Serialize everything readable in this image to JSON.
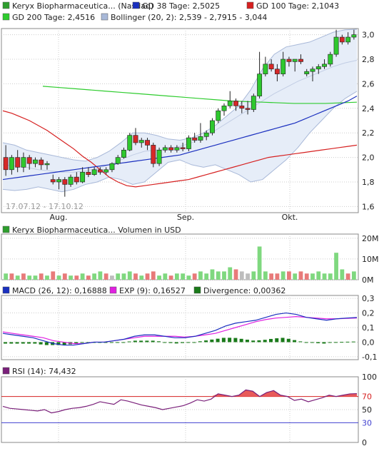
{
  "price_panel": {
    "legend": [
      {
        "label": "Keryx Biopharmaceutica... (Nasdaq)",
        "color": "#2e9e2e"
      },
      {
        "label": "GD 38 Tage: 2,5025",
        "color": "#1a2fbf"
      },
      {
        "label": "GD 100 Tage: 2,1043",
        "color": "#d62020"
      },
      {
        "label": "GD 200 Tage: 2,4516",
        "color": "#2ecc2e"
      },
      {
        "label": "Bollinger (20, 2): 2,539 - 2,7915 - 3,044",
        "color": "#a8b8d8"
      }
    ],
    "date_range": "17.07.12 - 17.10.12",
    "x_ticks": [
      "Aug.",
      "Sep.",
      "Okt."
    ],
    "y_ticks": [
      "3,0",
      "2,8",
      "2,6",
      "2,4",
      "2,2",
      "2,0",
      "1,8",
      "1,6"
    ]
  },
  "volume_panel": {
    "legend": [
      {
        "label": "Keryx Biopharmaceutica... Volumen in USD",
        "color": "#2e9e2e"
      }
    ],
    "y_ticks": [
      "20M",
      "10M",
      "0M"
    ]
  },
  "macd_panel": {
    "legend": [
      {
        "label": "MACD (26, 12): 0,16888",
        "color": "#1a2fbf"
      },
      {
        "label": "EXP (9): 0,16527",
        "color": "#e020e0"
      },
      {
        "label": "Divergence: 0,00362",
        "color": "#1a7a1a"
      }
    ],
    "y_ticks": [
      "0,3",
      "0,2",
      "0,1",
      "0,0",
      "-0,1"
    ]
  },
  "rsi_panel": {
    "legend": [
      {
        "label": "RSI (14): 74,432",
        "color": "#7a207a"
      }
    ],
    "y_ticks": [
      "100",
      "70",
      "50",
      "30",
      "0"
    ]
  },
  "chart_data": [
    {
      "type": "candlestick",
      "title": "Keryx Biopharmaceutica... (Nasdaq)",
      "x_range": [
        "17.07.12",
        "17.10.12"
      ],
      "ylim": [
        1.55,
        3.05
      ],
      "candles": [
        [
          2.0,
          2.1,
          1.85,
          1.9
        ],
        [
          1.9,
          2.02,
          1.86,
          2.0
        ],
        [
          2.0,
          2.06,
          1.88,
          1.92
        ],
        [
          1.92,
          2.04,
          1.88,
          2.0
        ],
        [
          2.0,
          2.02,
          1.9,
          1.95
        ],
        [
          1.95,
          2.0,
          1.92,
          1.98
        ],
        [
          1.98,
          2.0,
          1.9,
          1.94
        ],
        [
          1.94,
          1.97,
          1.9,
          1.95
        ],
        [
          1.82,
          1.86,
          1.78,
          1.8
        ],
        [
          1.8,
          1.84,
          1.74,
          1.82
        ],
        [
          1.82,
          1.84,
          1.68,
          1.78
        ],
        [
          1.78,
          1.86,
          1.76,
          1.84
        ],
        [
          1.84,
          1.88,
          1.78,
          1.8
        ],
        [
          1.8,
          1.92,
          1.79,
          1.88
        ],
        [
          1.88,
          1.92,
          1.84,
          1.86
        ],
        [
          1.86,
          1.92,
          1.85,
          1.9
        ],
        [
          1.9,
          1.92,
          1.86,
          1.88
        ],
        [
          1.88,
          1.92,
          1.86,
          1.9
        ],
        [
          1.9,
          1.96,
          1.88,
          1.95
        ],
        [
          1.95,
          2.02,
          1.94,
          2.0
        ],
        [
          2.0,
          2.08,
          1.99,
          2.06
        ],
        [
          2.06,
          2.2,
          2.05,
          2.18
        ],
        [
          2.18,
          2.24,
          2.1,
          2.12
        ],
        [
          2.12,
          2.16,
          2.08,
          2.14
        ],
        [
          2.14,
          2.16,
          2.06,
          2.1
        ],
        [
          2.1,
          2.12,
          1.92,
          1.95
        ],
        [
          1.95,
          2.08,
          1.93,
          2.06
        ],
        [
          2.06,
          2.1,
          2.04,
          2.08
        ],
        [
          2.08,
          2.1,
          2.04,
          2.06
        ],
        [
          2.06,
          2.1,
          2.04,
          2.08
        ],
        [
          2.08,
          2.12,
          2.05,
          2.07
        ],
        [
          2.07,
          2.18,
          2.05,
          2.16
        ],
        [
          2.16,
          2.2,
          2.12,
          2.14
        ],
        [
          2.14,
          2.28,
          2.12,
          2.17
        ],
        [
          2.17,
          2.22,
          2.14,
          2.2
        ],
        [
          2.2,
          2.32,
          2.18,
          2.3
        ],
        [
          2.3,
          2.4,
          2.28,
          2.38
        ],
        [
          2.38,
          2.44,
          2.34,
          2.42
        ],
        [
          2.42,
          2.54,
          2.4,
          2.46
        ],
        [
          2.46,
          2.48,
          2.38,
          2.42
        ],
        [
          2.42,
          2.46,
          2.36,
          2.4
        ],
        [
          2.4,
          2.46,
          2.35,
          2.39
        ],
        [
          2.39,
          2.52,
          2.37,
          2.5
        ],
        [
          2.5,
          2.86,
          2.48,
          2.68
        ],
        [
          2.68,
          2.82,
          2.66,
          2.76
        ],
        [
          2.76,
          2.8,
          2.7,
          2.72
        ],
        [
          2.72,
          2.76,
          2.62,
          2.68
        ],
        [
          2.68,
          2.86,
          2.66,
          2.8
        ],
        [
          2.8,
          2.82,
          2.74,
          2.78
        ],
        [
          2.78,
          2.8,
          2.7,
          2.8
        ],
        [
          2.8,
          2.84,
          2.76,
          2.78
        ],
        [
          2.68,
          2.72,
          2.66,
          2.7
        ],
        [
          2.7,
          2.74,
          2.62,
          2.72
        ],
        [
          2.72,
          2.76,
          2.68,
          2.74
        ],
        [
          2.74,
          2.8,
          2.72,
          2.76
        ],
        [
          2.76,
          2.86,
          2.74,
          2.84
        ],
        [
          2.84,
          3.04,
          2.82,
          2.98
        ],
        [
          2.98,
          3.0,
          2.92,
          2.94
        ],
        [
          2.94,
          3.02,
          2.92,
          2.98
        ],
        [
          2.98,
          3.04,
          2.96,
          3.0
        ]
      ],
      "overlays": {
        "gd38": [
          1.82,
          1.83,
          1.84,
          1.85,
          1.86,
          1.87,
          1.88,
          1.89,
          1.9,
          1.91,
          1.92,
          1.93,
          1.94,
          1.95,
          1.96,
          1.97,
          1.98,
          1.99,
          2.0,
          2.01,
          2.02,
          2.04,
          2.06,
          2.08,
          2.1,
          2.12,
          2.14,
          2.16,
          2.18,
          2.2,
          2.22,
          2.24,
          2.26,
          2.28,
          2.31,
          2.34,
          2.37,
          2.4,
          2.43,
          2.46,
          2.5
        ],
        "gd100": [
          2.38,
          2.36,
          2.33,
          2.3,
          2.26,
          2.22,
          2.17,
          2.12,
          2.07,
          2.01,
          1.96,
          1.9,
          1.84,
          1.8,
          1.77,
          1.76,
          1.77,
          1.78,
          1.79,
          1.8,
          1.81,
          1.82,
          1.84,
          1.86,
          1.88,
          1.9,
          1.92,
          1.94,
          1.96,
          1.98,
          2.0,
          2.01,
          2.02,
          2.03,
          2.04,
          2.05,
          2.06,
          2.07,
          2.08,
          2.09,
          2.1
        ],
        "gd200": [
          2.58,
          2.57,
          2.56,
          2.55,
          2.54,
          2.53,
          2.52,
          2.51,
          2.5,
          2.49,
          2.48,
          2.47,
          2.46,
          2.455,
          2.45,
          2.445,
          2.44,
          2.44,
          2.44,
          2.445,
          2.45
        ],
        "boll_upper": [
          2.12,
          2.1,
          2.06,
          2.04,
          2.02,
          2.0,
          1.98,
          1.97,
          2.0,
          2.05,
          2.12,
          2.2,
          2.2,
          2.18,
          2.15,
          2.14,
          2.16,
          2.2,
          2.26,
          2.34,
          2.42,
          2.55,
          2.72,
          2.84,
          2.9,
          2.92,
          2.94,
          2.98,
          3.02,
          3.04,
          3.044
        ],
        "boll_middle": [
          1.94,
          1.93,
          1.92,
          1.9,
          1.89,
          1.88,
          1.88,
          1.89,
          1.91,
          1.94,
          1.98,
          2.02,
          2.05,
          2.06,
          2.07,
          2.09,
          2.12,
          2.16,
          2.22,
          2.28,
          2.34,
          2.4,
          2.46,
          2.52,
          2.57,
          2.62,
          2.66,
          2.7,
          2.74,
          2.77,
          2.7915
        ],
        "boll_lower": [
          1.74,
          1.73,
          1.74,
          1.76,
          1.74,
          1.72,
          1.74,
          1.78,
          1.8,
          1.84,
          1.82,
          1.78,
          1.8,
          1.88,
          1.96,
          1.98,
          1.94,
          1.92,
          1.94,
          1.9,
          1.86,
          1.8,
          1.82,
          1.9,
          1.98,
          2.08,
          2.2,
          2.3,
          2.4,
          2.48,
          2.539
        ]
      }
    },
    {
      "type": "bar",
      "title": "Volumen in USD",
      "ylim": [
        0,
        22
      ],
      "values": [
        3,
        3,
        2,
        3,
        2,
        2,
        3,
        2,
        4,
        2,
        3,
        2,
        2,
        3,
        2,
        3,
        4,
        3,
        2,
        3,
        3,
        4,
        3,
        2,
        3,
        4,
        2,
        3,
        2,
        3,
        3,
        2,
        3,
        4,
        3,
        5,
        4,
        4,
        6,
        5,
        4,
        3,
        4,
        16,
        4,
        3,
        3,
        4,
        4,
        3,
        4,
        3,
        3,
        4,
        3,
        3,
        13,
        5,
        3,
        4
      ],
      "colors": [
        "g",
        "r",
        "g",
        "r",
        "g",
        "g",
        "r",
        "g",
        "r",
        "g",
        "r",
        "g",
        "r",
        "g",
        "r",
        "g",
        "g",
        "r",
        "gr",
        "g",
        "g",
        "g",
        "r",
        "g",
        "r",
        "r",
        "g",
        "g",
        "r",
        "g",
        "g",
        "g",
        "r",
        "g",
        "g",
        "g",
        "g",
        "g",
        "g",
        "r",
        "gr",
        "gr",
        "g",
        "g",
        "g",
        "r",
        "r",
        "g",
        "r",
        "g",
        "r",
        "r",
        "g",
        "g",
        "g",
        "g",
        "g",
        "g",
        "r",
        "g"
      ]
    },
    {
      "type": "line",
      "title": "MACD",
      "ylim": [
        -0.12,
        0.32
      ],
      "macd": [
        0.06,
        0.05,
        0.04,
        0.03,
        0.01,
        -0.01,
        -0.02,
        -0.02,
        -0.01,
        0.0,
        0.0,
        0.01,
        0.02,
        0.04,
        0.05,
        0.05,
        0.04,
        0.03,
        0.03,
        0.04,
        0.06,
        0.08,
        0.11,
        0.13,
        0.14,
        0.15,
        0.17,
        0.19,
        0.2,
        0.19,
        0.17,
        0.16,
        0.15,
        0.16,
        0.165,
        0.169
      ],
      "exp": [
        0.07,
        0.06,
        0.05,
        0.04,
        0.03,
        0.01,
        0.0,
        -0.01,
        -0.01,
        0.0,
        0.0,
        0.01,
        0.02,
        0.03,
        0.04,
        0.04,
        0.04,
        0.04,
        0.035,
        0.04,
        0.05,
        0.06,
        0.08,
        0.1,
        0.12,
        0.14,
        0.155,
        0.165,
        0.17,
        0.175,
        0.17,
        0.165,
        0.16,
        0.16,
        0.163,
        0.165
      ],
      "divergence": [
        -0.01,
        -0.01,
        -0.01,
        -0.01,
        -0.02,
        -0.02,
        -0.02,
        -0.01,
        0.0,
        0.0,
        0.0,
        0.0,
        0.0,
        0.01,
        0.01,
        0.01,
        0.0,
        -0.01,
        -0.005,
        0.0,
        0.01,
        0.02,
        0.03,
        0.03,
        0.02,
        0.01,
        0.015,
        0.025,
        0.03,
        0.015,
        0.0,
        -0.005,
        -0.01,
        0.0,
        0.002,
        0.004
      ]
    },
    {
      "type": "line",
      "title": "RSI (14)",
      "ylim": [
        0,
        100
      ],
      "rsi": [
        55,
        52,
        51,
        50,
        49,
        48,
        50,
        45,
        47,
        50,
        52,
        53,
        55,
        58,
        62,
        60,
        58,
        65,
        63,
        60,
        57,
        55,
        53,
        50,
        52,
        54,
        56,
        60,
        65,
        63,
        66,
        74,
        72,
        70,
        72,
        80,
        78,
        70,
        76,
        79,
        72,
        70,
        64,
        66,
        62,
        65,
        68,
        72,
        70,
        72,
        74,
        74.4
      ]
    }
  ]
}
